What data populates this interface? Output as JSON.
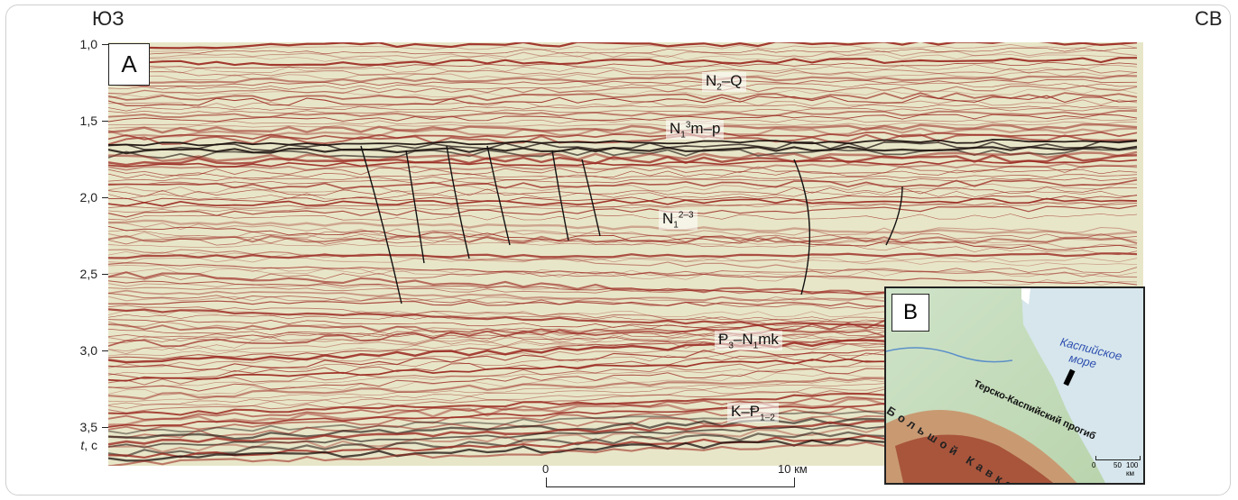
{
  "figure": {
    "direction_left": "ЮЗ",
    "direction_right": "СВ",
    "panel_a_label": "А",
    "panel_b_label": "В",
    "y_axis": {
      "ticks": [
        "1,0",
        "1,5",
        "2,0",
        "2,5",
        "3,0",
        "3,5"
      ],
      "unit_prefix": "t",
      "unit_suffix": ", с"
    },
    "units": {
      "n2q_main": "N",
      "n2q_sub": "2",
      "n2q_tail": "–Q",
      "n1m_main": "N",
      "n1m_sup": "3",
      "n1m_sub": "1",
      "n1m_tail": "m–p",
      "n1_main": "N",
      "n1_sup": "2–3",
      "n1_sub": "1",
      "p3_main": "Ᵽ",
      "p3_sub": "3",
      "p3_mid": "–N",
      "p3_sub2": "1",
      "p3_tail": "mk",
      "k_main": "K–Ᵽ",
      "k_sub": "1–2"
    },
    "scale": {
      "start": "0",
      "end": "10 км"
    },
    "inset": {
      "sea_label_line1": "Каспийское",
      "sea_label_line2": "море",
      "trough_label": "Терско-Каспийский прогиб",
      "mountain_label": "Большой Кавказ",
      "scale_0": "0",
      "scale_50": "50",
      "scale_100": "100 км"
    },
    "colors": {
      "reflector_red": "#9b2a22",
      "reflector_dark": "#1a0e0c",
      "background_light": "#e8e6c8",
      "sea_text": "#2e4fb0"
    }
  }
}
